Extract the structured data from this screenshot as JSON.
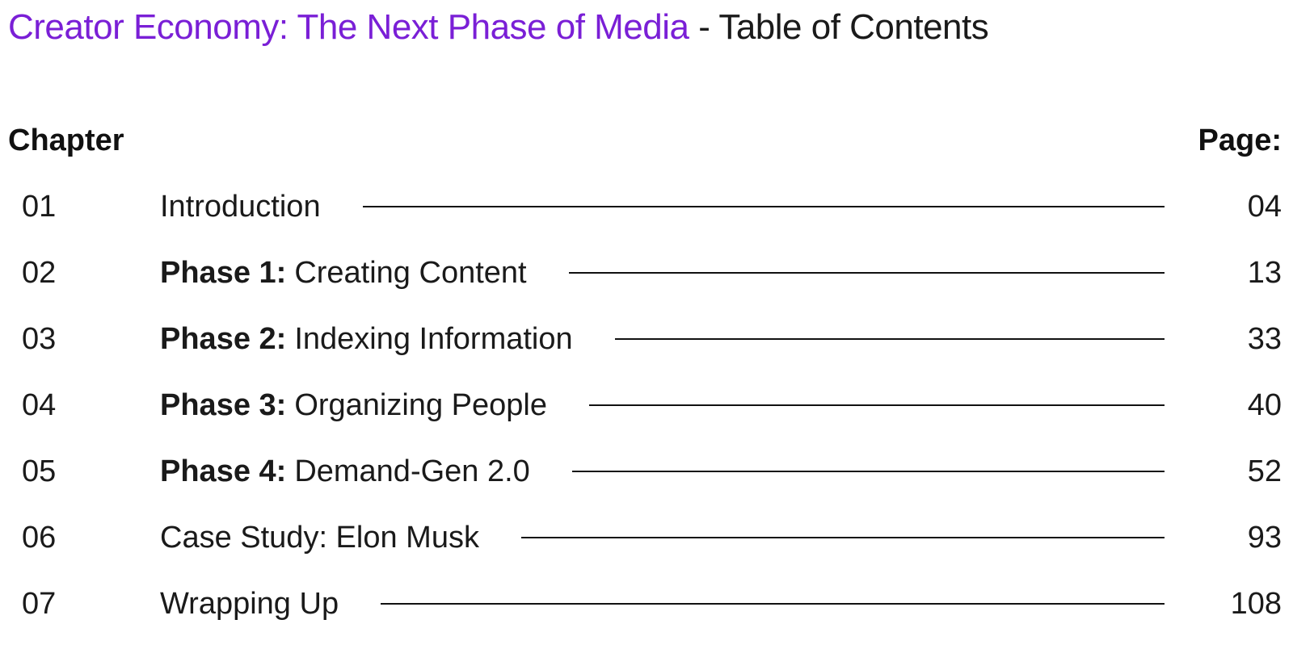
{
  "header": {
    "title_accent": "Creator Economy: The Next Phase of Media",
    "title_separator": " - ",
    "title_rest": "Table of Contents",
    "accent_color": "#7a1fd6"
  },
  "columns": {
    "chapter_label": "Chapter",
    "page_label": "Page:"
  },
  "toc": [
    {
      "number": "01",
      "phase": "",
      "title": "Introduction",
      "page": "04"
    },
    {
      "number": "02",
      "phase": "Phase 1:",
      "title": "Creating Content",
      "page": "13"
    },
    {
      "number": "03",
      "phase": "Phase 2:",
      "title": "Indexing Information",
      "page": "33"
    },
    {
      "number": "04",
      "phase": "Phase 3:",
      "title": "Organizing People",
      "page": "40"
    },
    {
      "number": "05",
      "phase": "Phase 4:",
      "title": "Demand-Gen 2.0",
      "page": "52"
    },
    {
      "number": "06",
      "phase": "",
      "title": "Case Study: Elon Musk",
      "page": "93"
    },
    {
      "number": "07",
      "phase": "",
      "title": "Wrapping Up",
      "page": "108"
    }
  ]
}
